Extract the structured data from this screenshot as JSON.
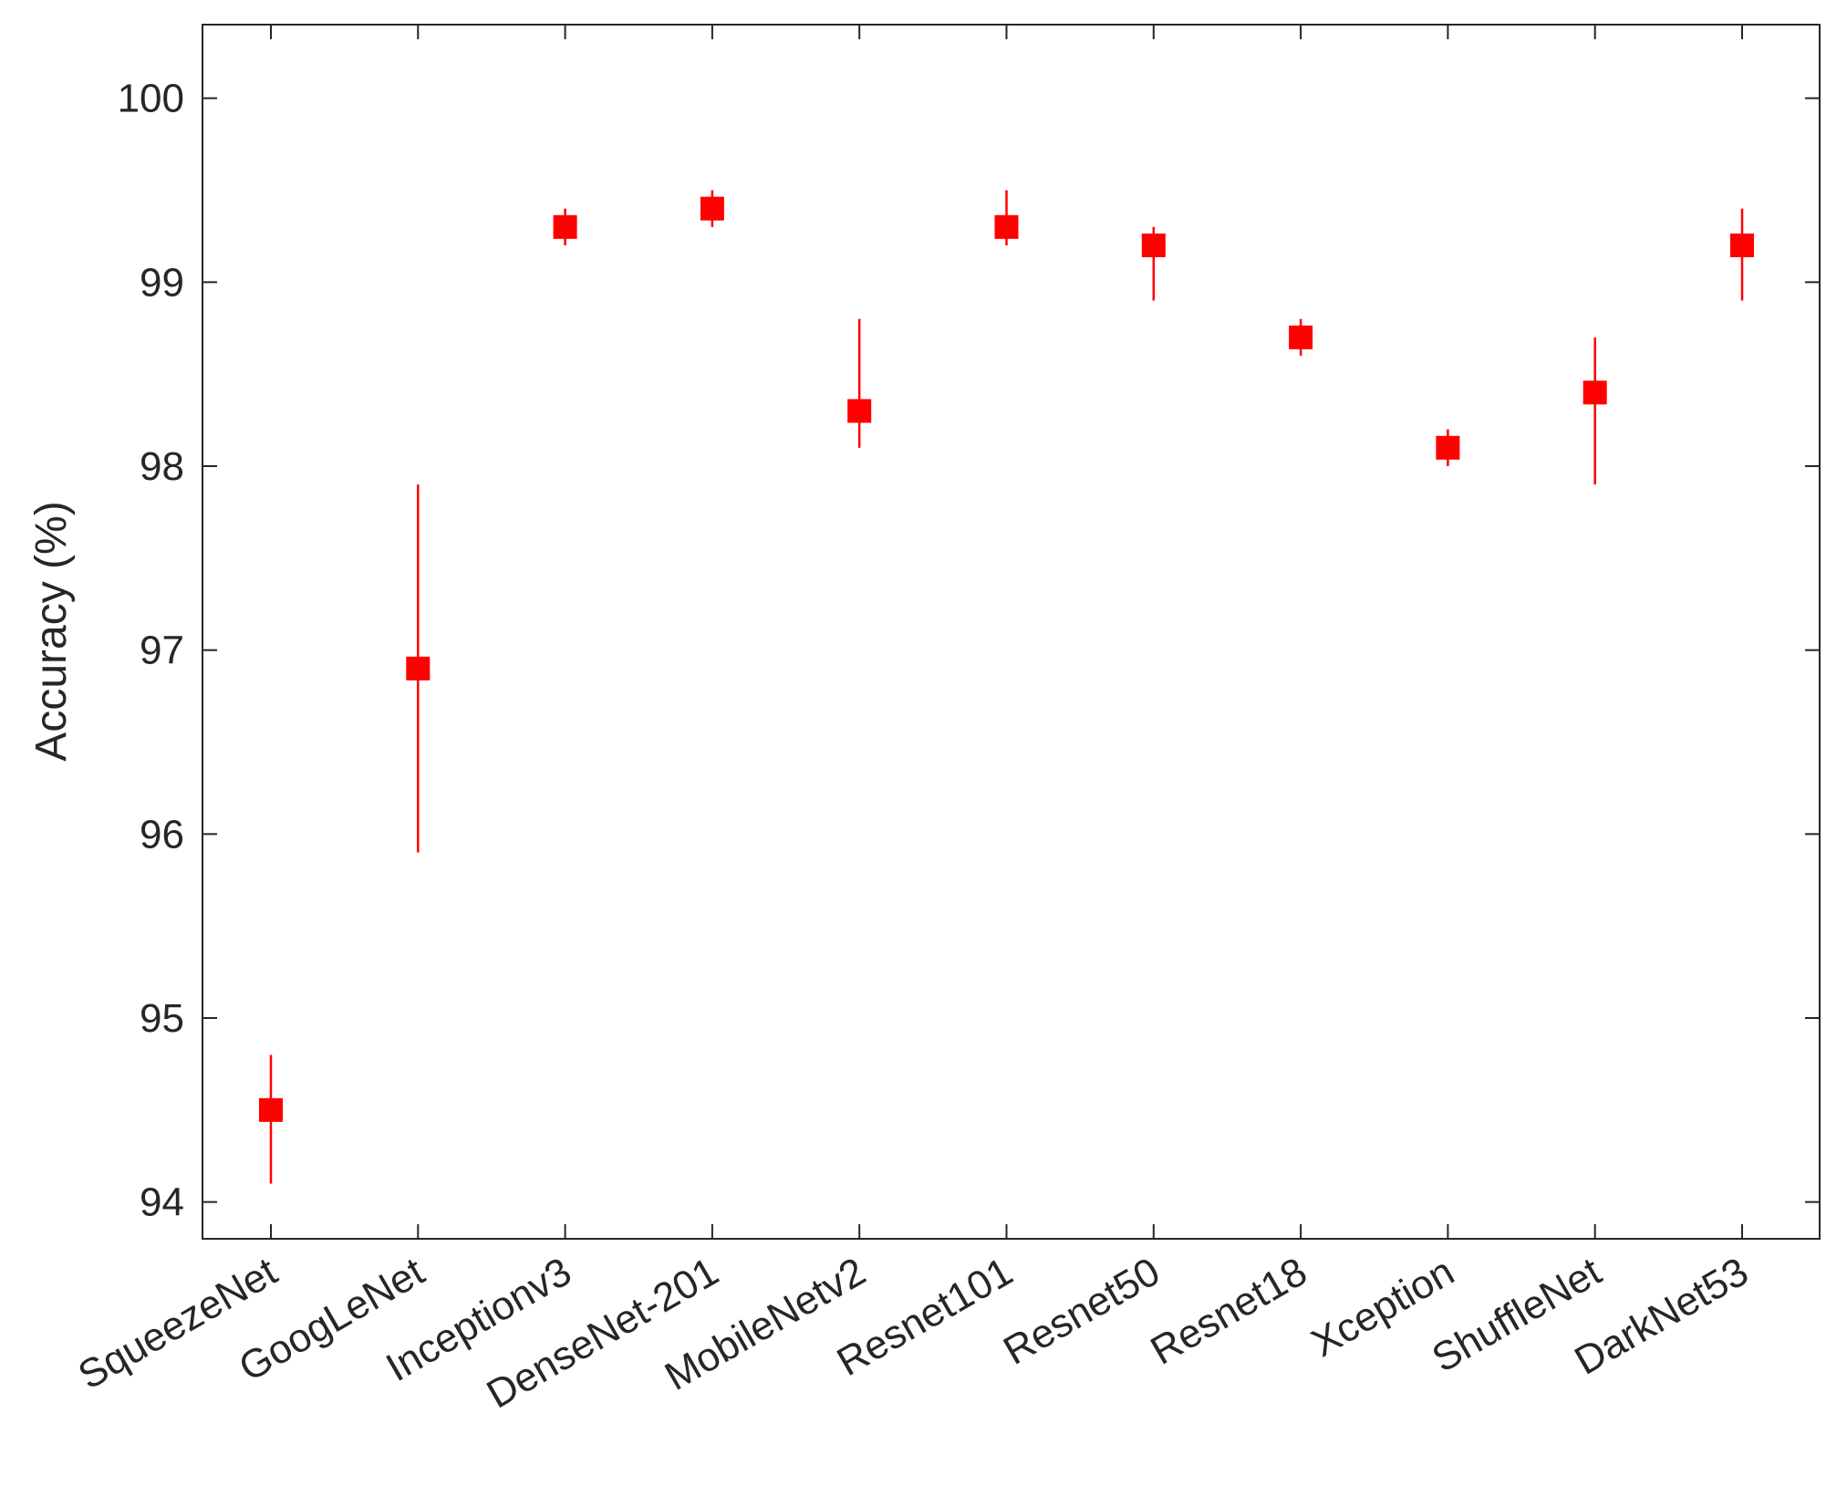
{
  "chart_data": {
    "type": "scatter",
    "ylabel": "Accuracy (%)",
    "xlabel": "",
    "title": "",
    "ylim": [
      93.8,
      100.4
    ],
    "yticks": [
      94,
      95,
      96,
      97,
      98,
      99,
      100
    ],
    "grid": false,
    "categories": [
      "SqueezeNet",
      "GoogLeNet",
      "Inceptionv3",
      "DenseNet-201",
      "MobileNetv2",
      "Resnet101",
      "Resnet50",
      "Resnet18",
      "Xception",
      "ShuffleNet",
      "DarkNet53"
    ],
    "series": [
      {
        "values": [
          94.5,
          96.9,
          99.3,
          99.4,
          98.3,
          99.3,
          99.2,
          98.7,
          98.1,
          98.4,
          99.2
        ],
        "lower": [
          94.1,
          95.9,
          99.2,
          99.3,
          98.1,
          99.2,
          98.9,
          98.6,
          98.0,
          97.9,
          98.9
        ],
        "upper": [
          94.8,
          97.9,
          99.4,
          99.5,
          98.8,
          99.5,
          99.3,
          98.8,
          98.2,
          98.7,
          99.4
        ],
        "marker": "square",
        "color": "#ff0000"
      }
    ]
  }
}
